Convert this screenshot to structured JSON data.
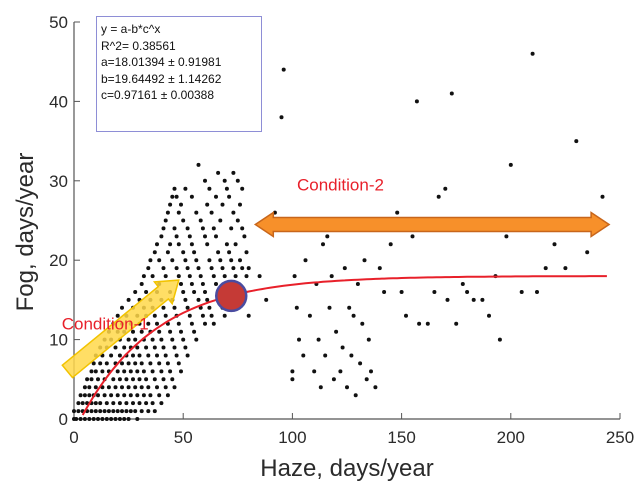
{
  "colors": {
    "points": "#111111",
    "fit_curve": "#e8202a",
    "marker_fill": "#c53a36",
    "marker_stroke": "#4a4ca0",
    "condition1_arrow_fill": "#ffd84a",
    "condition1_arrow_stroke": "#f2c300",
    "condition2_arrow_fill": "#f7902a",
    "condition2_arrow_stroke": "#c8661b",
    "condition_label": "#e8202a",
    "fit_box_border": "#8e8ed6"
  },
  "fit_box": {
    "equation": "y = a-b*c^x",
    "r2": "R^2= 0.38561",
    "a": "a=18.01394 ±  0.91981",
    "b": "b=19.64492 ±  1.14262",
    "c": "c=0.97161 ±  0.00388"
  },
  "chart_data": {
    "type": "scatter",
    "title": "",
    "xlabel": "Haze, days/year",
    "ylabel": "Fog, days/year",
    "xlim": [
      0,
      250
    ],
    "ylim": [
      0,
      50
    ],
    "xticks": [
      0,
      50,
      100,
      150,
      200,
      250
    ],
    "yticks": [
      0,
      10,
      20,
      30,
      40,
      50
    ],
    "grid": false,
    "fit": {
      "formula": "y = a-b*c^x",
      "a": 18.01394,
      "b": 19.64492,
      "c": 0.97161,
      "r2": 0.38561
    },
    "highlight_point": {
      "x": 72,
      "y": 15.5
    },
    "annotations": [
      {
        "label": "Condition-1",
        "x": 15,
        "y": 12
      },
      {
        "label": "Condition-2",
        "x": 125,
        "y": 28
      }
    ],
    "arrows": [
      {
        "from": [
          -3,
          6
        ],
        "to": [
          48,
          17.5
        ],
        "direction": "forward"
      },
      {
        "from": [
          83,
          24.5
        ],
        "to": [
          245,
          24.5
        ],
        "direction": "both"
      }
    ],
    "points": [
      [
        0,
        0
      ],
      [
        0,
        1
      ],
      [
        1,
        0
      ],
      [
        2,
        1
      ],
      [
        2,
        2
      ],
      [
        3,
        0
      ],
      [
        3,
        3
      ],
      [
        4,
        1
      ],
      [
        4,
        2
      ],
      [
        5,
        0
      ],
      [
        5,
        3
      ],
      [
        5,
        4
      ],
      [
        6,
        1
      ],
      [
        6,
        2
      ],
      [
        6,
        5
      ],
      [
        7,
        0
      ],
      [
        7,
        3
      ],
      [
        7,
        4
      ],
      [
        8,
        1
      ],
      [
        8,
        2
      ],
      [
        8,
        5
      ],
      [
        8,
        6
      ],
      [
        9,
        0
      ],
      [
        9,
        3
      ],
      [
        9,
        7
      ],
      [
        10,
        1
      ],
      [
        10,
        2
      ],
      [
        10,
        4
      ],
      [
        10,
        6
      ],
      [
        10,
        8
      ],
      [
        11,
        0
      ],
      [
        11,
        3
      ],
      [
        11,
        5
      ],
      [
        12,
        1
      ],
      [
        12,
        2
      ],
      [
        12,
        7
      ],
      [
        12,
        9
      ],
      [
        13,
        0
      ],
      [
        13,
        4
      ],
      [
        13,
        6
      ],
      [
        13,
        8
      ],
      [
        14,
        1
      ],
      [
        14,
        3
      ],
      [
        14,
        5
      ],
      [
        14,
        10
      ],
      [
        15,
        0
      ],
      [
        15,
        2
      ],
      [
        15,
        7
      ],
      [
        15,
        9
      ],
      [
        16,
        1
      ],
      [
        16,
        4
      ],
      [
        16,
        6
      ],
      [
        16,
        11
      ],
      [
        17,
        0
      ],
      [
        17,
        3
      ],
      [
        17,
        8
      ],
      [
        17,
        10
      ],
      [
        18,
        1
      ],
      [
        18,
        2
      ],
      [
        18,
        5
      ],
      [
        18,
        12
      ],
      [
        19,
        0
      ],
      [
        19,
        4
      ],
      [
        19,
        7
      ],
      [
        19,
        9
      ],
      [
        20,
        1
      ],
      [
        20,
        3
      ],
      [
        20,
        6
      ],
      [
        20,
        11
      ],
      [
        20,
        13
      ],
      [
        21,
        0
      ],
      [
        21,
        2
      ],
      [
        21,
        5
      ],
      [
        21,
        8
      ],
      [
        21,
        10
      ],
      [
        22,
        1
      ],
      [
        22,
        4
      ],
      [
        22,
        7
      ],
      [
        22,
        12
      ],
      [
        22,
        14
      ],
      [
        23,
        0
      ],
      [
        23,
        3
      ],
      [
        23,
        6
      ],
      [
        23,
        9
      ],
      [
        23,
        11
      ],
      [
        24,
        1
      ],
      [
        24,
        2
      ],
      [
        24,
        5
      ],
      [
        24,
        8
      ],
      [
        24,
        13
      ],
      [
        25,
        0
      ],
      [
        25,
        4
      ],
      [
        25,
        7
      ],
      [
        25,
        10
      ],
      [
        25,
        15
      ],
      [
        26,
        1
      ],
      [
        26,
        3
      ],
      [
        26,
        6
      ],
      [
        26,
        9
      ],
      [
        26,
        12
      ],
      [
        27,
        2
      ],
      [
        27,
        5
      ],
      [
        27,
        8
      ],
      [
        27,
        11
      ],
      [
        27,
        14
      ],
      [
        28,
        1
      ],
      [
        28,
        4
      ],
      [
        28,
        7
      ],
      [
        28,
        10
      ],
      [
        28,
        16
      ],
      [
        29,
        0
      ],
      [
        29,
        3
      ],
      [
        29,
        6
      ],
      [
        29,
        9
      ],
      [
        29,
        13
      ],
      [
        30,
        2
      ],
      [
        30,
        5
      ],
      [
        30,
        8
      ],
      [
        30,
        12
      ],
      [
        30,
        15
      ],
      [
        31,
        1
      ],
      [
        31,
        4
      ],
      [
        31,
        7
      ],
      [
        31,
        11
      ],
      [
        31,
        17
      ],
      [
        32,
        3
      ],
      [
        32,
        6
      ],
      [
        32,
        10
      ],
      [
        32,
        14
      ],
      [
        32,
        18
      ],
      [
        33,
        2
      ],
      [
        33,
        5
      ],
      [
        33,
        9
      ],
      [
        33,
        13
      ],
      [
        33,
        16
      ],
      [
        34,
        1
      ],
      [
        34,
        4
      ],
      [
        34,
        8
      ],
      [
        34,
        12
      ],
      [
        34,
        19
      ],
      [
        35,
        3
      ],
      [
        35,
        7
      ],
      [
        35,
        11
      ],
      [
        35,
        15
      ],
      [
        35,
        20
      ],
      [
        36,
        2
      ],
      [
        36,
        6
      ],
      [
        36,
        10
      ],
      [
        36,
        14
      ],
      [
        36,
        18
      ],
      [
        37,
        1
      ],
      [
        37,
        5
      ],
      [
        37,
        9
      ],
      [
        37,
        13
      ],
      [
        37,
        21
      ],
      [
        38,
        4
      ],
      [
        38,
        8
      ],
      [
        38,
        12
      ],
      [
        38,
        16
      ],
      [
        38,
        22
      ],
      [
        39,
        3
      ],
      [
        39,
        7
      ],
      [
        39,
        11
      ],
      [
        39,
        17
      ],
      [
        39,
        20
      ],
      [
        40,
        2
      ],
      [
        40,
        6
      ],
      [
        40,
        10
      ],
      [
        40,
        15
      ],
      [
        40,
        23
      ],
      [
        41,
        5
      ],
      [
        41,
        9
      ],
      [
        41,
        14
      ],
      [
        41,
        19
      ],
      [
        41,
        24
      ],
      [
        42,
        4
      ],
      [
        42,
        8
      ],
      [
        42,
        13
      ],
      [
        42,
        18
      ],
      [
        42,
        25
      ],
      [
        43,
        3
      ],
      [
        43,
        7
      ],
      [
        43,
        12
      ],
      [
        43,
        21
      ],
      [
        43,
        26
      ],
      [
        44,
        6
      ],
      [
        44,
        11
      ],
      [
        44,
        16
      ],
      [
        44,
        22
      ],
      [
        44,
        27
      ],
      [
        45,
        5
      ],
      [
        45,
        10
      ],
      [
        45,
        15
      ],
      [
        45,
        20
      ],
      [
        45,
        28
      ],
      [
        46,
        4
      ],
      [
        46,
        9
      ],
      [
        46,
        14
      ],
      [
        46,
        24
      ],
      [
        46,
        29
      ],
      [
        47,
        8
      ],
      [
        47,
        13
      ],
      [
        47,
        19
      ],
      [
        47,
        23
      ],
      [
        47,
        28
      ],
      [
        48,
        7
      ],
      [
        48,
        12
      ],
      [
        48,
        18
      ],
      [
        48,
        22
      ],
      [
        48,
        26
      ],
      [
        49,
        6
      ],
      [
        49,
        11
      ],
      [
        49,
        17
      ],
      [
        49,
        27
      ],
      [
        50,
        10
      ],
      [
        50,
        16
      ],
      [
        50,
        21
      ],
      [
        50,
        25
      ],
      [
        51,
        9
      ],
      [
        51,
        15
      ],
      [
        51,
        20
      ],
      [
        51,
        29
      ],
      [
        52,
        8
      ],
      [
        52,
        14
      ],
      [
        52,
        19
      ],
      [
        52,
        24
      ],
      [
        53,
        13
      ],
      [
        53,
        18
      ],
      [
        53,
        23
      ],
      [
        54,
        12
      ],
      [
        54,
        17
      ],
      [
        54,
        22
      ],
      [
        54,
        28
      ],
      [
        55,
        11
      ],
      [
        55,
        16
      ],
      [
        55,
        21
      ],
      [
        56,
        10
      ],
      [
        56,
        20
      ],
      [
        56,
        26
      ],
      [
        57,
        15
      ],
      [
        57,
        19
      ],
      [
        57,
        32
      ],
      [
        58,
        14
      ],
      [
        58,
        18
      ],
      [
        58,
        25
      ],
      [
        59,
        13
      ],
      [
        59,
        17
      ],
      [
        59,
        24
      ],
      [
        60,
        12
      ],
      [
        60,
        16
      ],
      [
        60,
        23
      ],
      [
        60,
        30
      ],
      [
        61,
        15
      ],
      [
        61,
        22
      ],
      [
        61,
        27
      ],
      [
        62,
        14
      ],
      [
        62,
        20
      ],
      [
        62,
        29
      ],
      [
        63,
        13
      ],
      [
        63,
        19
      ],
      [
        63,
        26
      ],
      [
        64,
        12
      ],
      [
        64,
        18
      ],
      [
        64,
        24
      ],
      [
        65,
        17
      ],
      [
        65,
        23
      ],
      [
        65,
        28
      ],
      [
        66,
        16
      ],
      [
        66,
        21
      ],
      [
        66,
        31
      ],
      [
        67,
        15
      ],
      [
        67,
        20
      ],
      [
        67,
        25
      ],
      [
        68,
        14
      ],
      [
        68,
        19
      ],
      [
        68,
        27
      ],
      [
        69,
        13
      ],
      [
        69,
        18
      ],
      [
        69,
        30
      ],
      [
        70,
        17
      ],
      [
        70,
        22
      ],
      [
        70,
        29
      ],
      [
        71,
        16
      ],
      [
        71,
        21
      ],
      [
        71,
        28
      ],
      [
        72,
        15
      ],
      [
        72,
        20
      ],
      [
        72,
        24
      ],
      [
        73,
        19
      ],
      [
        73,
        26
      ],
      [
        73,
        31
      ],
      [
        74,
        14
      ],
      [
        74,
        18
      ],
      [
        74,
        22
      ],
      [
        75,
        17
      ],
      [
        75,
        25
      ],
      [
        75,
        30
      ],
      [
        76,
        16
      ],
      [
        76,
        20
      ],
      [
        76,
        27
      ],
      [
        77,
        19
      ],
      [
        77,
        24
      ],
      [
        77,
        29
      ],
      [
        78,
        15
      ],
      [
        78,
        23
      ],
      [
        79,
        18
      ],
      [
        79,
        21
      ],
      [
        80,
        13
      ],
      [
        80,
        19
      ],
      [
        85,
        18
      ],
      [
        88,
        15
      ],
      [
        92,
        26
      ],
      [
        95,
        38
      ],
      [
        96,
        44
      ],
      [
        98,
        24
      ],
      [
        100,
        5
      ],
      [
        100,
        6
      ],
      [
        101,
        18
      ],
      [
        102,
        14
      ],
      [
        103,
        10
      ],
      [
        105,
        8
      ],
      [
        106,
        20
      ],
      [
        108,
        13
      ],
      [
        110,
        6
      ],
      [
        111,
        17
      ],
      [
        112,
        10
      ],
      [
        113,
        4
      ],
      [
        114,
        22
      ],
      [
        115,
        8
      ],
      [
        116,
        23
      ],
      [
        117,
        14
      ],
      [
        118,
        18
      ],
      [
        119,
        5
      ],
      [
        120,
        11
      ],
      [
        121,
        25
      ],
      [
        122,
        6
      ],
      [
        123,
        9
      ],
      [
        124,
        19
      ],
      [
        125,
        4
      ],
      [
        126,
        14
      ],
      [
        127,
        8
      ],
      [
        128,
        13
      ],
      [
        129,
        3
      ],
      [
        130,
        17
      ],
      [
        131,
        7
      ],
      [
        132,
        12
      ],
      [
        133,
        20
      ],
      [
        134,
        5
      ],
      [
        135,
        10
      ],
      [
        136,
        6
      ],
      [
        138,
        4
      ],
      [
        140,
        19
      ],
      [
        142,
        16
      ],
      [
        145,
        22
      ],
      [
        148,
        26
      ],
      [
        150,
        16
      ],
      [
        152,
        13
      ],
      [
        155,
        23
      ],
      [
        157,
        40
      ],
      [
        158,
        12
      ],
      [
        162,
        12
      ],
      [
        165,
        16
      ],
      [
        167,
        28
      ],
      [
        170,
        29
      ],
      [
        171,
        15
      ],
      [
        173,
        41
      ],
      [
        175,
        12
      ],
      [
        178,
        17
      ],
      [
        180,
        16
      ],
      [
        183,
        15
      ],
      [
        187,
        15
      ],
      [
        190,
        13
      ],
      [
        193,
        18
      ],
      [
        195,
        10
      ],
      [
        198,
        23
      ],
      [
        200,
        32
      ],
      [
        205,
        16
      ],
      [
        210,
        46
      ],
      [
        212,
        16
      ],
      [
        216,
        19
      ],
      [
        220,
        22
      ],
      [
        225,
        19
      ],
      [
        230,
        35
      ],
      [
        235,
        21
      ],
      [
        242,
        28
      ]
    ]
  }
}
